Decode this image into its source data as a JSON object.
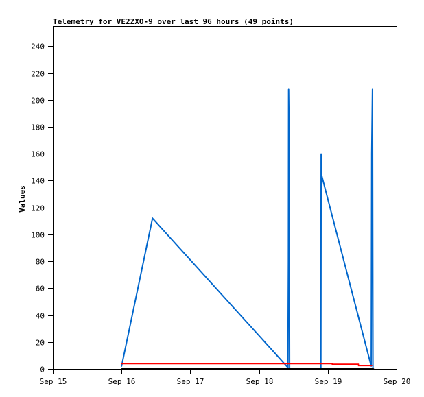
{
  "chart_data": {
    "type": "line",
    "title": "Telemetry for VE2ZXO-9 over last 96 hours (49 points)",
    "xlabel": "",
    "ylabel": "Values",
    "xlim": [
      "Sep 15 00:00",
      "Sep 20 00:00"
    ],
    "ylim": [
      0,
      255
    ],
    "x_ticks": [
      "Sep 15",
      "Sep 16",
      "Sep 17",
      "Sep 18",
      "Sep 19",
      "Sep 20"
    ],
    "y_ticks": [
      0,
      20,
      40,
      60,
      80,
      100,
      120,
      140,
      160,
      180,
      200,
      220,
      240
    ],
    "grid": false,
    "series": [
      {
        "color": "#0066cc",
        "points": [
          [
            "Sep 16 00:00",
            2
          ],
          [
            "Sep 16 10:48",
            112
          ],
          [
            "Sep 18 10:05",
            1
          ],
          [
            "Sep 18 10:15",
            80
          ],
          [
            "Sep 18 10:20",
            208
          ],
          [
            "Sep 18 10:30",
            176
          ],
          [
            "Sep 18 10:40",
            0
          ],
          [
            "Sep 18 21:35",
            0
          ],
          [
            "Sep 18 21:40",
            160
          ],
          [
            "Sep 18 21:50",
            144
          ],
          [
            "Sep 19 15:10",
            2
          ],
          [
            "Sep 19 15:20",
            160
          ],
          [
            "Sep 19 15:35",
            208
          ],
          [
            "Sep 19 15:45",
            0
          ]
        ]
      },
      {
        "color": "#ff0000",
        "points": [
          [
            "Sep 16 00:00",
            4
          ],
          [
            "Sep 19 01:30",
            4
          ],
          [
            "Sep 19 01:35",
            3.4
          ],
          [
            "Sep 19 10:40",
            3.4
          ],
          [
            "Sep 19 10:45",
            2.5
          ],
          [
            "Sep 19 15:20",
            2.5
          ]
        ]
      },
      {
        "color": "#000000",
        "points": [
          [
            "Sep 16 00:00",
            0
          ],
          [
            "Sep 19 16:00",
            0
          ]
        ]
      }
    ]
  }
}
